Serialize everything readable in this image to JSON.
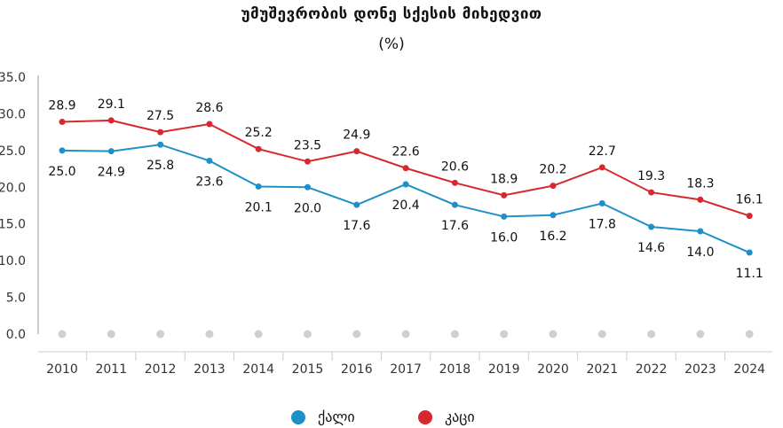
{
  "chart_data": {
    "type": "line",
    "title": "უმუშევრობის დონე სქესის მიხედვით",
    "subtitle": "(%)",
    "categories": [
      "2010",
      "2011",
      "2012",
      "2013",
      "2014",
      "2015",
      "2016",
      "2017",
      "2018",
      "2019",
      "2020",
      "2021",
      "2022",
      "2023",
      "2024"
    ],
    "yticks": [
      "0.0",
      "5.0",
      "10.0",
      "15.0",
      "20.0",
      "25.0",
      "30.0",
      "35.0"
    ],
    "ylim": [
      0,
      35
    ],
    "series": [
      {
        "name": "ქალი",
        "color": "#1e90c8",
        "values": [
          25.0,
          24.9,
          25.8,
          23.6,
          20.1,
          20.0,
          17.6,
          20.4,
          17.6,
          16.0,
          16.2,
          17.8,
          14.6,
          14.0,
          11.1
        ],
        "labels": [
          "25.0",
          "24.9",
          "25.8",
          "23.6",
          "20.1",
          "20.0",
          "17.6",
          "20.4",
          "17.6",
          "16.0",
          "16.2",
          "17.8",
          "14.6",
          "14.0",
          "11.1"
        ]
      },
      {
        "name": "კაცი",
        "color": "#d7282f",
        "values": [
          28.9,
          29.1,
          27.5,
          28.6,
          25.2,
          23.5,
          24.9,
          22.6,
          20.6,
          18.9,
          20.2,
          22.7,
          19.3,
          18.3,
          16.1
        ],
        "labels": [
          "28.9",
          "29.1",
          "27.5",
          "28.6",
          "25.2",
          "23.5",
          "24.9",
          "22.6",
          "20.6",
          "18.9",
          "20.2",
          "22.7",
          "19.3",
          "18.3",
          "16.1"
        ]
      }
    ],
    "legend": {
      "position": "bottom"
    }
  }
}
